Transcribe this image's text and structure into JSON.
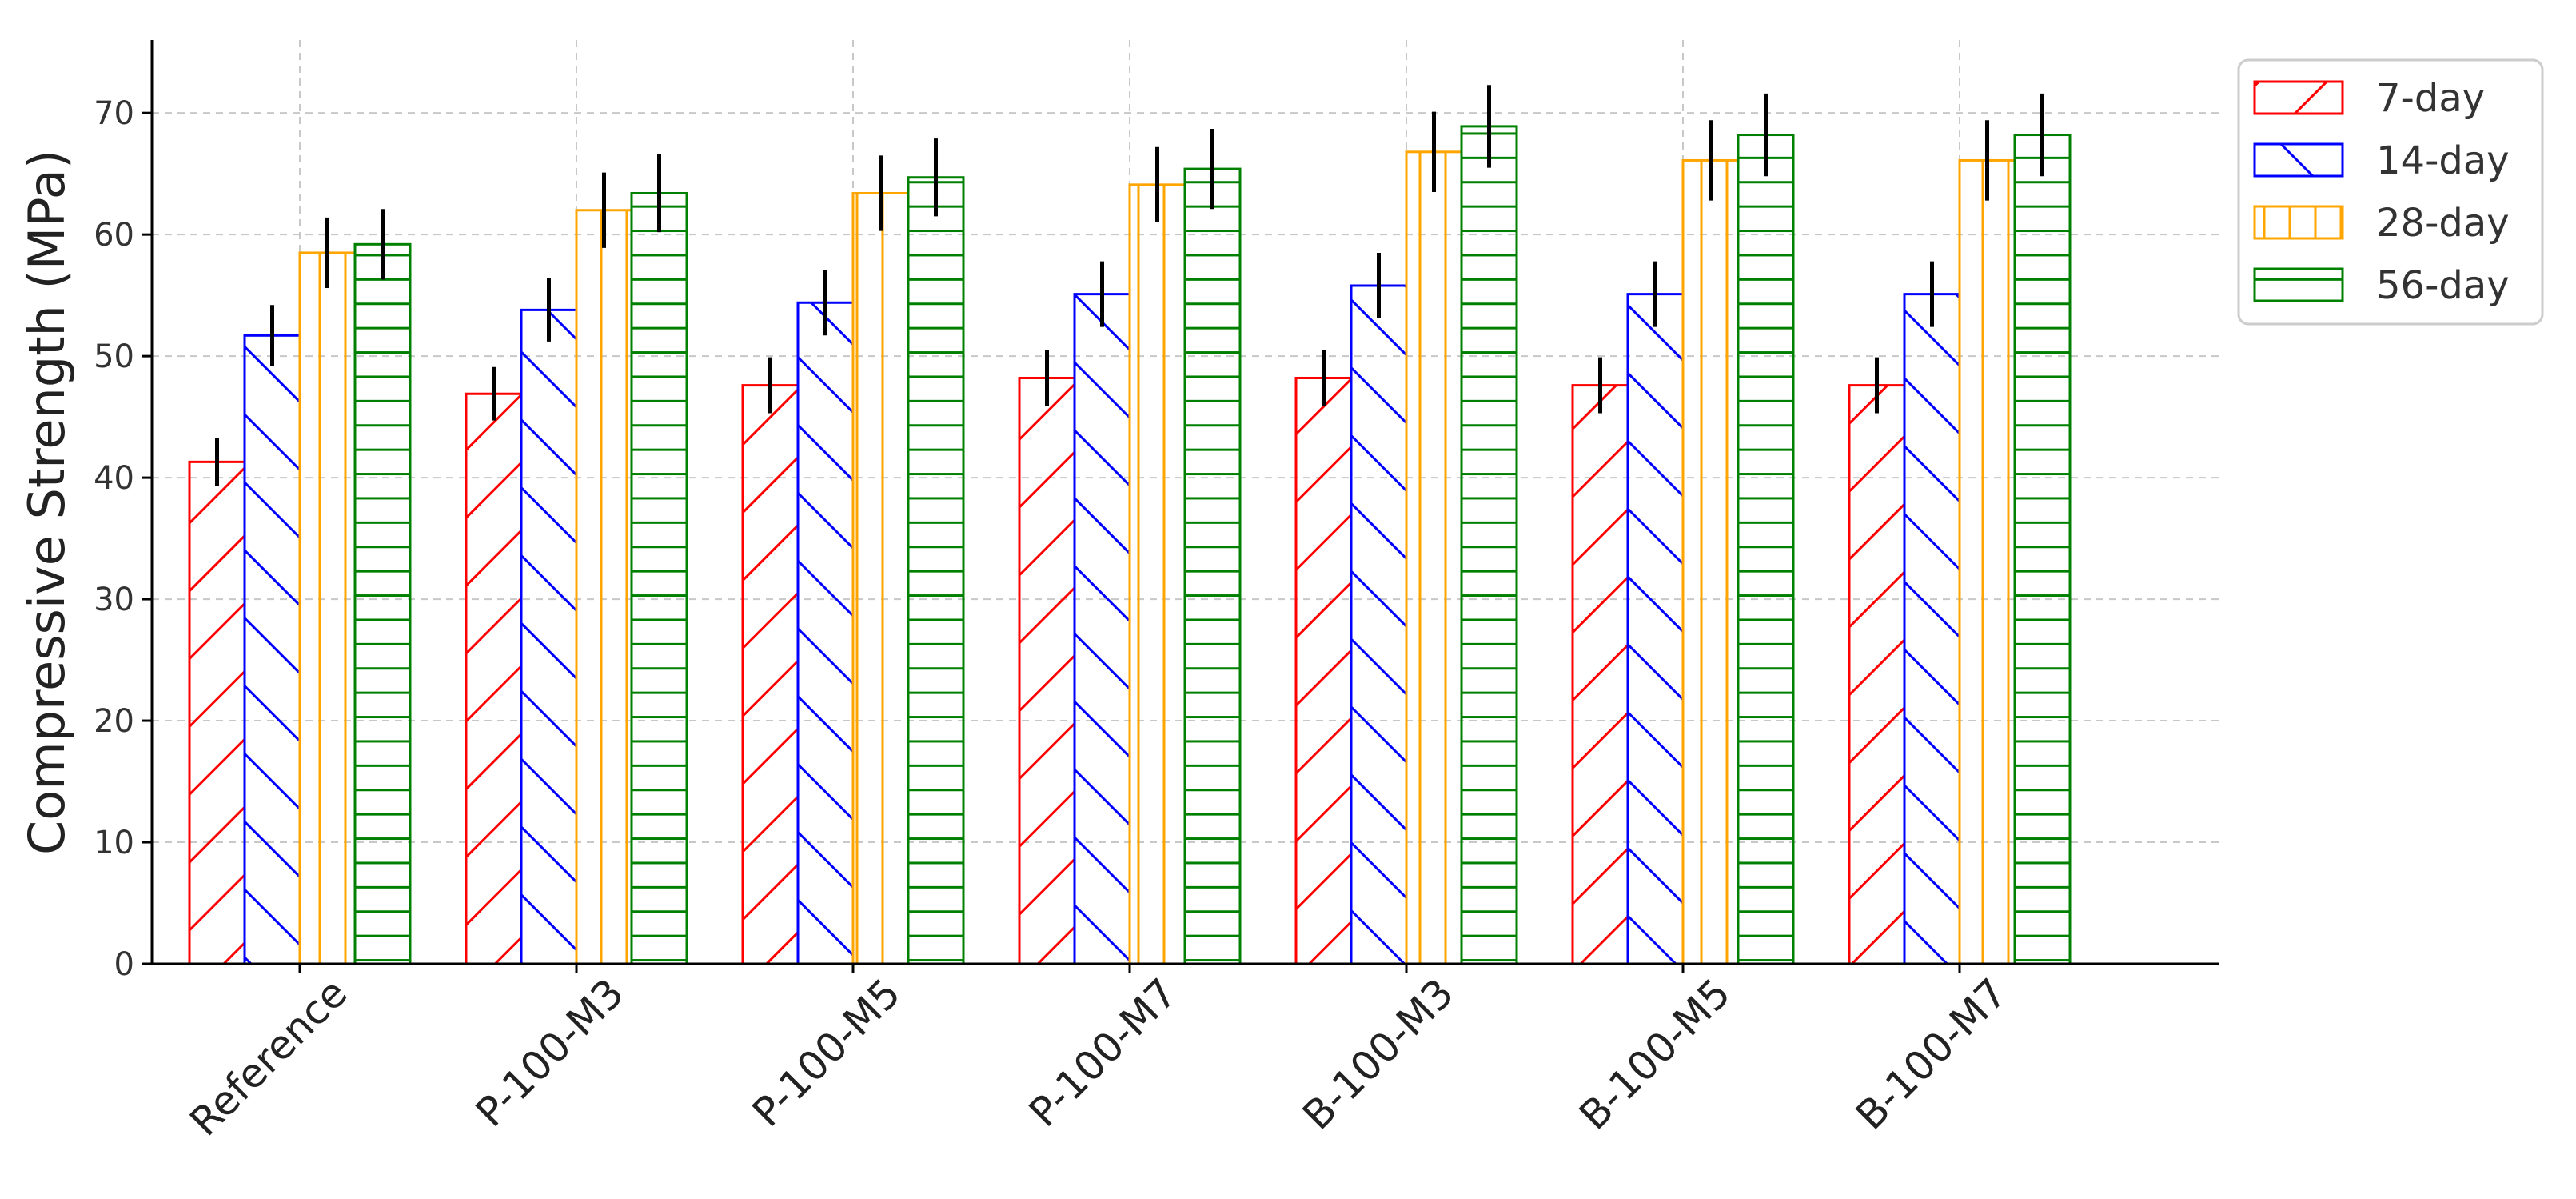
{
  "chart_data": {
    "type": "bar",
    "title": "",
    "xlabel": "",
    "ylabel": "Compressive Strength (MPa)",
    "ylim": [
      0,
      76
    ],
    "yticks": [
      0,
      10,
      20,
      30,
      40,
      50,
      60,
      70
    ],
    "grid": true,
    "legend_position": "top-right",
    "categories": [
      "Reference",
      "P-100-M3",
      "P-100-M5",
      "P-100-M7",
      "B-100-M3",
      "B-100-M5",
      "B-100-M7"
    ],
    "series": [
      {
        "name": "7-day",
        "color": "#ff0000",
        "hatch": "forward-diagonal",
        "values": [
          41.3,
          46.9,
          47.6,
          48.2,
          48.2,
          47.6,
          47.6
        ],
        "errors": [
          2.0,
          2.2,
          2.3,
          2.3,
          2.3,
          2.3,
          2.3
        ]
      },
      {
        "name": "14-day",
        "color": "#0000ff",
        "hatch": "back-diagonal",
        "values": [
          51.7,
          53.8,
          54.4,
          55.1,
          55.8,
          55.1,
          55.1
        ],
        "errors": [
          2.5,
          2.6,
          2.7,
          2.7,
          2.7,
          2.7,
          2.7
        ]
      },
      {
        "name": "28-day",
        "color": "#ffa500",
        "hatch": "vertical",
        "values": [
          58.5,
          62.0,
          63.4,
          64.1,
          66.8,
          66.1,
          66.1
        ],
        "errors": [
          2.9,
          3.1,
          3.1,
          3.1,
          3.3,
          3.3,
          3.3
        ]
      },
      {
        "name": "56-day",
        "color": "#008000",
        "hatch": "horizontal",
        "values": [
          59.2,
          63.4,
          64.7,
          65.4,
          68.9,
          68.2,
          68.2
        ],
        "errors": [
          2.9,
          3.2,
          3.2,
          3.3,
          3.4,
          3.4,
          3.4
        ]
      }
    ]
  }
}
